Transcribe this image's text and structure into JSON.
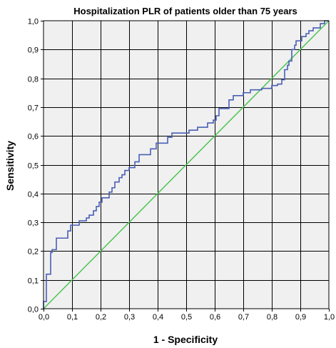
{
  "chart_data": {
    "type": "line",
    "title": "Hospitalization PLR of patients older than 75 years",
    "xlabel": "1 - Specificity",
    "ylabel": "Sensitivity",
    "xlim": [
      0,
      1
    ],
    "ylim": [
      0,
      1
    ],
    "grid": true,
    "colors": {
      "plot_background": "#f0f0f0",
      "grid": "#000000",
      "roc_curve": "#4a5fb5",
      "reference_line": "#4cc552"
    },
    "x_ticks": [
      "0,0",
      "0,1",
      "0,2",
      "0,3",
      "0,4",
      "0,5",
      "0,6",
      "0,7",
      "0,8",
      "0,9",
      "1,0"
    ],
    "y_ticks": [
      "0,0",
      "0,1",
      "0,2",
      "0,3",
      "0,4",
      "0,5",
      "0,6",
      "0,7",
      "0,8",
      "0,9",
      "1,0"
    ],
    "series": [
      {
        "style": "step",
        "points": [
          [
            0.0,
            0.0
          ],
          [
            0.0,
            0.025
          ],
          [
            0.01,
            0.025
          ],
          [
            0.01,
            0.12
          ],
          [
            0.025,
            0.12
          ],
          [
            0.025,
            0.195
          ],
          [
            0.03,
            0.195
          ],
          [
            0.03,
            0.205
          ],
          [
            0.045,
            0.205
          ],
          [
            0.045,
            0.245
          ],
          [
            0.085,
            0.245
          ],
          [
            0.085,
            0.27
          ],
          [
            0.095,
            0.27
          ],
          [
            0.095,
            0.29
          ],
          [
            0.125,
            0.29
          ],
          [
            0.125,
            0.305
          ],
          [
            0.15,
            0.305
          ],
          [
            0.15,
            0.315
          ],
          [
            0.16,
            0.315
          ],
          [
            0.16,
            0.325
          ],
          [
            0.175,
            0.325
          ],
          [
            0.175,
            0.34
          ],
          [
            0.185,
            0.34
          ],
          [
            0.185,
            0.355
          ],
          [
            0.195,
            0.355
          ],
          [
            0.195,
            0.37
          ],
          [
            0.205,
            0.37
          ],
          [
            0.205,
            0.385
          ],
          [
            0.23,
            0.385
          ],
          [
            0.23,
            0.405
          ],
          [
            0.24,
            0.405
          ],
          [
            0.24,
            0.42
          ],
          [
            0.25,
            0.42
          ],
          [
            0.25,
            0.44
          ],
          [
            0.265,
            0.44
          ],
          [
            0.265,
            0.455
          ],
          [
            0.275,
            0.455
          ],
          [
            0.275,
            0.465
          ],
          [
            0.285,
            0.465
          ],
          [
            0.285,
            0.48
          ],
          [
            0.3,
            0.48
          ],
          [
            0.3,
            0.49
          ],
          [
            0.32,
            0.49
          ],
          [
            0.32,
            0.51
          ],
          [
            0.335,
            0.51
          ],
          [
            0.335,
            0.535
          ],
          [
            0.375,
            0.535
          ],
          [
            0.375,
            0.555
          ],
          [
            0.395,
            0.555
          ],
          [
            0.395,
            0.575
          ],
          [
            0.435,
            0.575
          ],
          [
            0.435,
            0.595
          ],
          [
            0.45,
            0.595
          ],
          [
            0.45,
            0.61
          ],
          [
            0.51,
            0.61
          ],
          [
            0.51,
            0.62
          ],
          [
            0.54,
            0.62
          ],
          [
            0.54,
            0.63
          ],
          [
            0.575,
            0.63
          ],
          [
            0.575,
            0.645
          ],
          [
            0.595,
            0.645
          ],
          [
            0.595,
            0.655
          ],
          [
            0.605,
            0.655
          ],
          [
            0.605,
            0.67
          ],
          [
            0.615,
            0.67
          ],
          [
            0.615,
            0.695
          ],
          [
            0.65,
            0.695
          ],
          [
            0.65,
            0.725
          ],
          [
            0.665,
            0.725
          ],
          [
            0.665,
            0.74
          ],
          [
            0.7,
            0.74
          ],
          [
            0.7,
            0.75
          ],
          [
            0.725,
            0.75
          ],
          [
            0.725,
            0.76
          ],
          [
            0.765,
            0.76
          ],
          [
            0.765,
            0.765
          ],
          [
            0.8,
            0.765
          ],
          [
            0.8,
            0.775
          ],
          [
            0.82,
            0.775
          ],
          [
            0.82,
            0.78
          ],
          [
            0.835,
            0.78
          ],
          [
            0.835,
            0.795
          ],
          [
            0.845,
            0.795
          ],
          [
            0.845,
            0.83
          ],
          [
            0.855,
            0.83
          ],
          [
            0.855,
            0.845
          ],
          [
            0.86,
            0.845
          ],
          [
            0.86,
            0.86
          ],
          [
            0.87,
            0.86
          ],
          [
            0.87,
            0.9
          ],
          [
            0.88,
            0.9
          ],
          [
            0.88,
            0.915
          ],
          [
            0.885,
            0.915
          ],
          [
            0.885,
            0.93
          ],
          [
            0.905,
            0.93
          ],
          [
            0.905,
            0.945
          ],
          [
            0.92,
            0.945
          ],
          [
            0.92,
            0.955
          ],
          [
            0.93,
            0.955
          ],
          [
            0.93,
            0.965
          ],
          [
            0.945,
            0.965
          ],
          [
            0.945,
            0.975
          ],
          [
            0.97,
            0.975
          ],
          [
            0.97,
            0.99
          ],
          [
            0.985,
            0.99
          ],
          [
            0.985,
            1.0
          ],
          [
            1.0,
            1.0
          ]
        ]
      },
      {
        "style": "line",
        "points": [
          [
            0,
            0
          ],
          [
            1,
            1
          ]
        ]
      }
    ]
  }
}
